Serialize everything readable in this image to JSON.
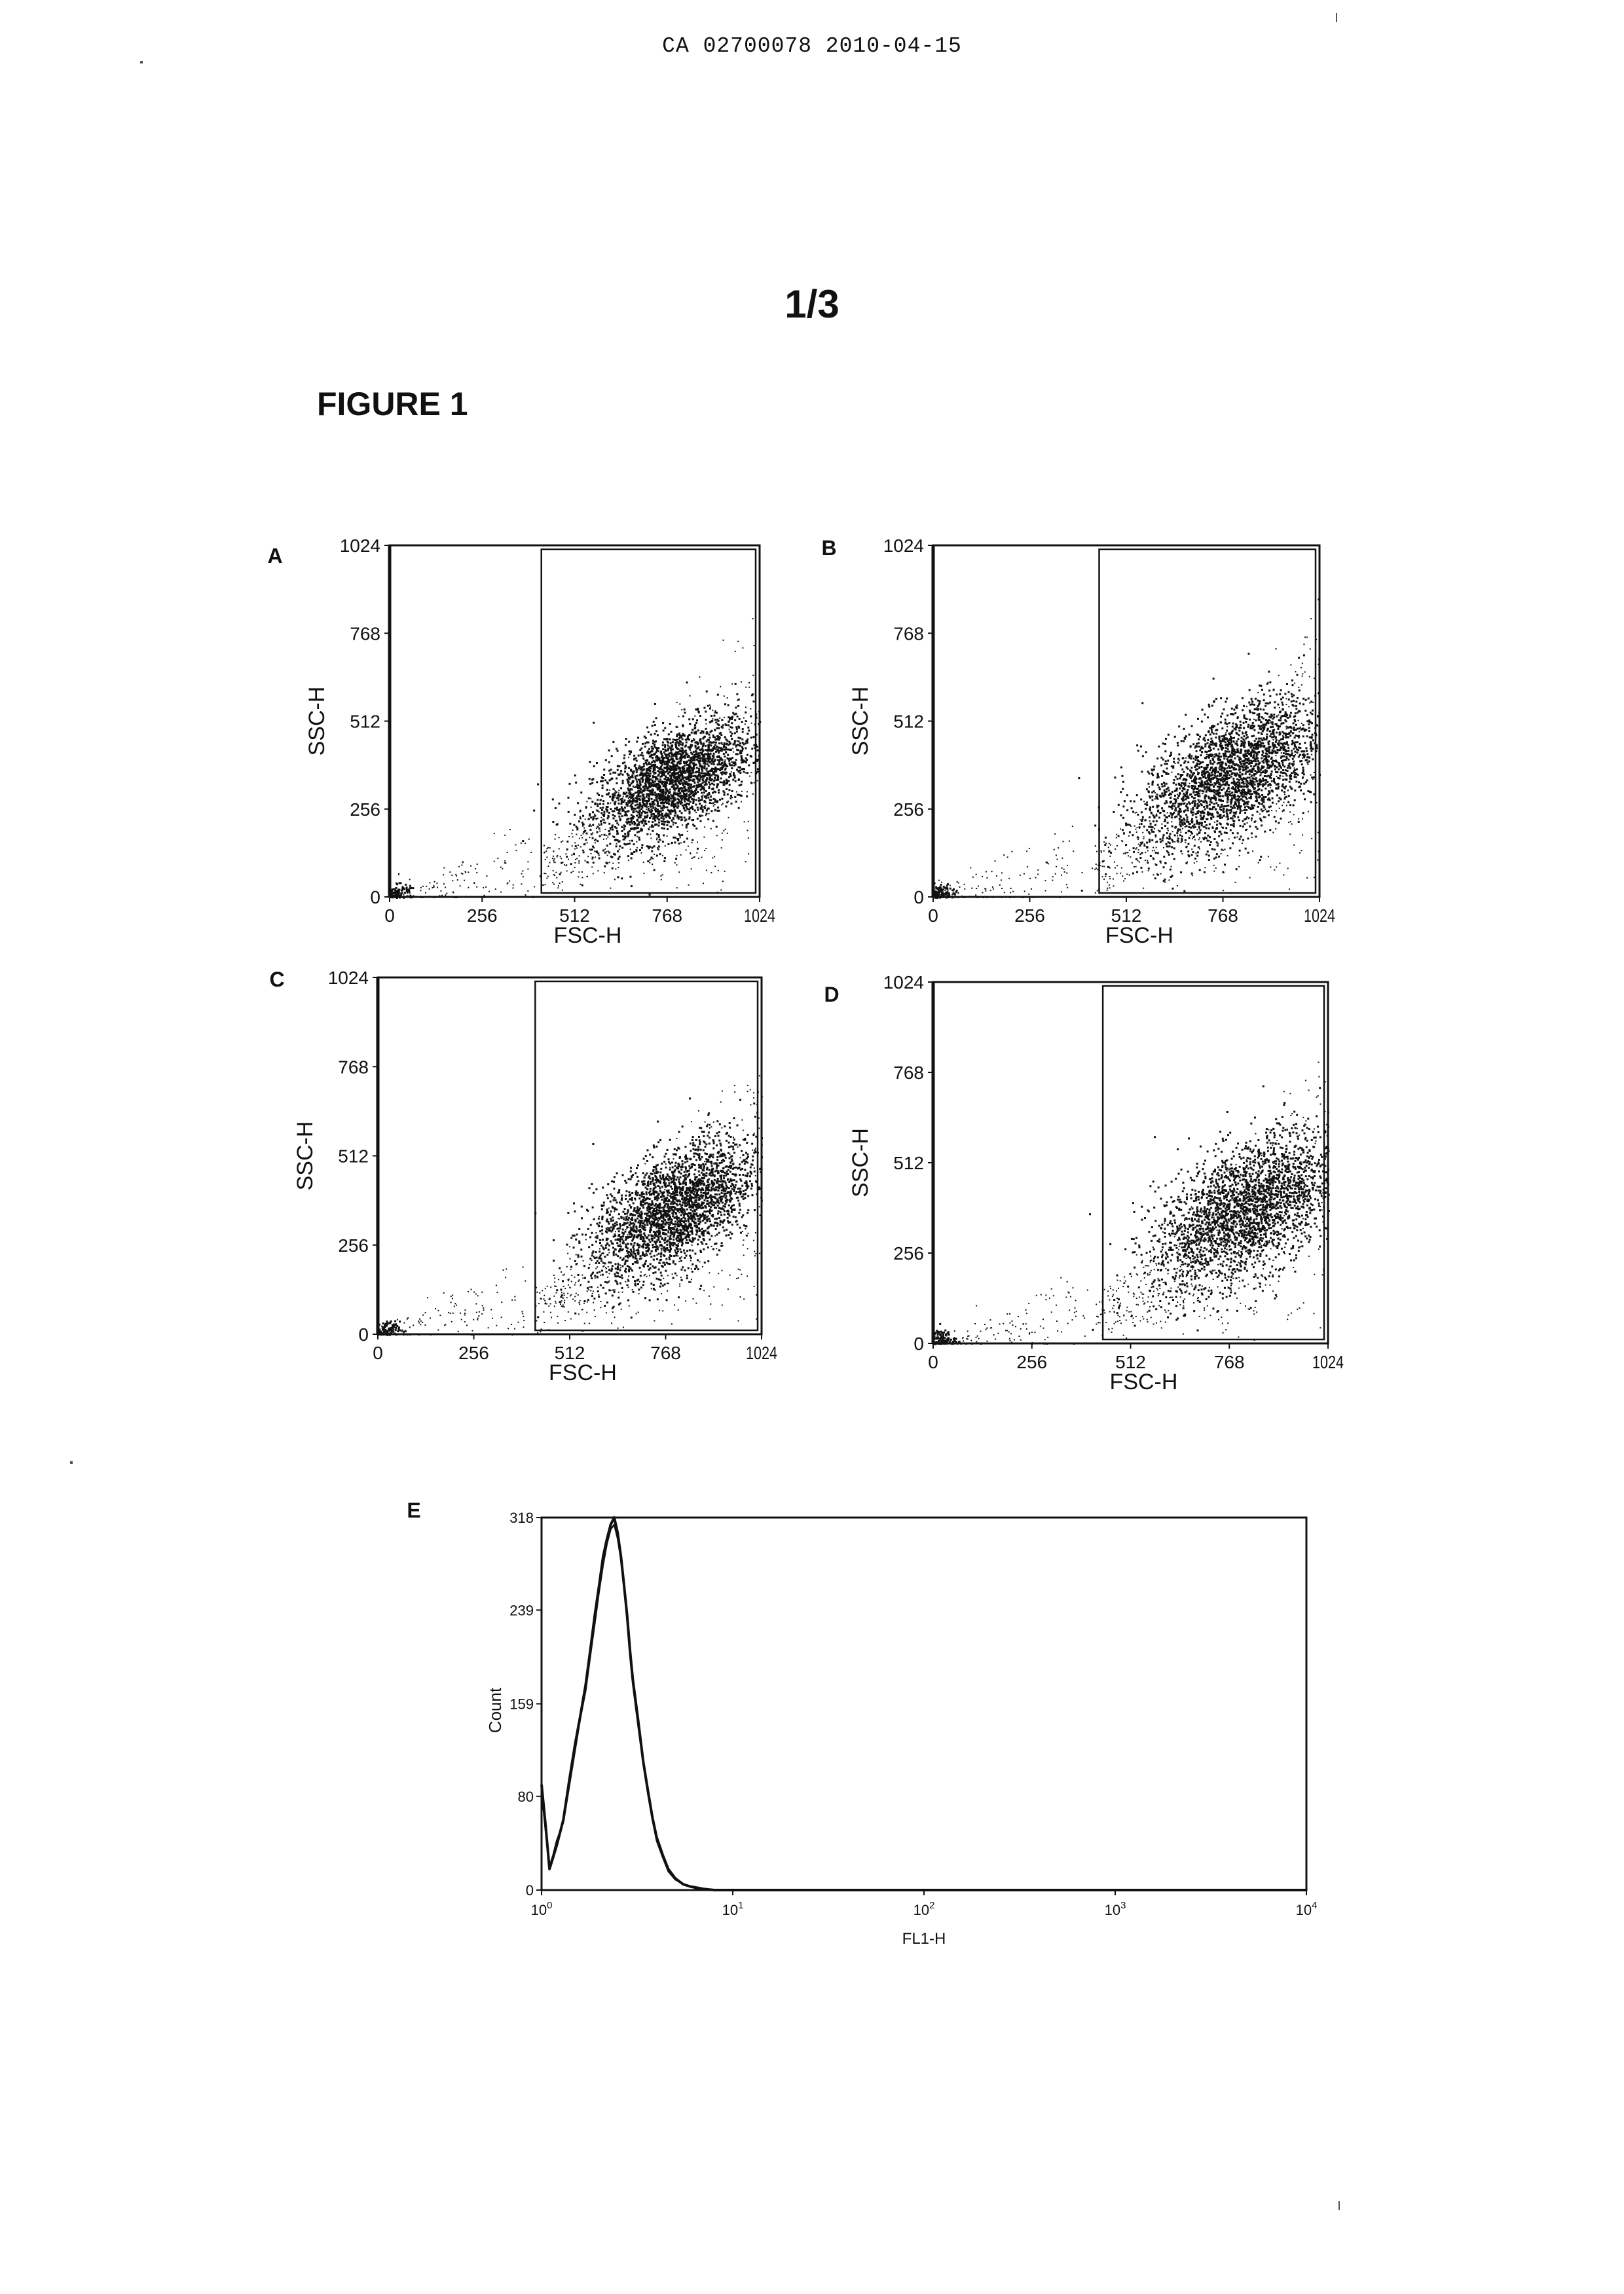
{
  "header": {
    "doc_id": "CA 02700078 2010-04-15"
  },
  "page_number": "1/3",
  "figure_title": "FIGURE 1",
  "chart_data": [
    {
      "panel": "A",
      "type": "scatter",
      "xlabel": "FSC-H",
      "ylabel": "SSC-H",
      "xlim": [
        0,
        1024
      ],
      "ylim": [
        0,
        1024
      ],
      "xticks": [
        "0",
        "256",
        "512",
        "768",
        "1024"
      ],
      "yticks": [
        "0",
        "256",
        "512",
        "768",
        "1024"
      ],
      "gate": {
        "x": [
          420,
          1024
        ],
        "y": [
          0,
          1024
        ]
      },
      "cluster": {
        "cx": 780,
        "cy": 340,
        "sx": 110,
        "sy": 90,
        "rho": 0.55
      }
    },
    {
      "panel": "B",
      "type": "scatter",
      "xlabel": "FSC-H",
      "ylabel": "SSC-H",
      "xlim": [
        0,
        1024
      ],
      "ylim": [
        0,
        1024
      ],
      "xticks": [
        "0",
        "256",
        "512",
        "768",
        "1024"
      ],
      "yticks": [
        "0",
        "256",
        "512",
        "768",
        "1024"
      ],
      "gate": {
        "x": [
          440,
          1024
        ],
        "y": [
          0,
          1024
        ]
      },
      "cluster": {
        "cx": 790,
        "cy": 360,
        "sx": 120,
        "sy": 110,
        "rho": 0.55
      }
    },
    {
      "panel": "C",
      "type": "scatter",
      "xlabel": "FSC-H",
      "ylabel": "SSC-H",
      "xlim": [
        0,
        1024
      ],
      "ylim": [
        0,
        1024
      ],
      "xticks": [
        "0",
        "256",
        "512",
        "768",
        "1024"
      ],
      "yticks": [
        "0",
        "256",
        "512",
        "768",
        "1024"
      ],
      "gate": {
        "x": [
          420,
          1024
        ],
        "y": [
          0,
          1024
        ]
      },
      "cluster": {
        "cx": 790,
        "cy": 360,
        "sx": 110,
        "sy": 100,
        "rho": 0.55
      }
    },
    {
      "panel": "D",
      "type": "scatter",
      "xlabel": "FSC-H",
      "ylabel": "SSC-H",
      "xlim": [
        0,
        1024
      ],
      "ylim": [
        0,
        1024
      ],
      "xticks": [
        "0",
        "256",
        "512",
        "768",
        "1024"
      ],
      "yticks": [
        "0",
        "256",
        "512",
        "768",
        "1024"
      ],
      "gate": {
        "x": [
          440,
          1024
        ],
        "y": [
          0,
          1024
        ]
      },
      "cluster": {
        "cx": 810,
        "cy": 380,
        "sx": 120,
        "sy": 110,
        "rho": 0.55
      }
    },
    {
      "panel": "E",
      "type": "line",
      "xlabel": "FL1-H",
      "ylabel": "Count",
      "xscale": "log",
      "xlim": [
        1,
        10000
      ],
      "ylim": [
        0,
        318
      ],
      "xticks": [
        {
          "base": "10",
          "exp": "0"
        },
        {
          "base": "10",
          "exp": "1"
        },
        {
          "base": "10",
          "exp": "2"
        },
        {
          "base": "10",
          "exp": "3"
        },
        {
          "base": "10",
          "exp": "4"
        }
      ],
      "yticks": [
        "0",
        "80",
        "159",
        "239",
        "318"
      ],
      "series": [
        {
          "x": [
            1.0,
            1.05,
            1.1,
            1.15,
            1.2,
            1.3,
            1.4,
            1.5,
            1.6,
            1.7,
            1.8,
            1.9,
            2.0,
            2.1,
            2.2,
            2.3,
            2.4,
            2.5,
            2.6,
            2.7,
            2.8,
            2.9,
            3.0,
            3.2,
            3.4,
            3.6,
            3.8,
            4.0,
            4.3,
            4.6,
            5.0,
            5.5,
            6.0,
            6.5,
            7.0,
            8.0,
            9.0,
            10.0,
            12.0,
            100.0,
            1000.0,
            10000.0
          ],
          "y": [
            90,
            55,
            18,
            28,
            38,
            60,
            95,
            125,
            150,
            175,
            205,
            235,
            260,
            285,
            300,
            312,
            318,
            305,
            285,
            260,
            235,
            205,
            180,
            145,
            110,
            85,
            62,
            45,
            30,
            18,
            10,
            5,
            3,
            2,
            1,
            0,
            0,
            0,
            0,
            0,
            0,
            0
          ]
        },
        {
          "x": [
            1.0,
            1.05,
            1.1,
            1.15,
            1.2,
            1.3,
            1.4,
            1.5,
            1.6,
            1.7,
            1.8,
            1.9,
            2.0,
            2.1,
            2.2,
            2.3,
            2.4,
            2.5,
            2.6,
            2.7,
            2.8,
            2.9,
            3.0,
            3.2,
            3.4,
            3.6,
            3.8,
            4.0,
            4.3,
            4.6,
            5.0,
            5.5,
            6.0,
            6.5,
            7.0,
            8.0,
            9.0,
            10.0,
            12.0,
            100.0,
            1000.0,
            10000.0
          ],
          "y": [
            85,
            50,
            20,
            30,
            42,
            58,
            90,
            120,
            148,
            170,
            200,
            228,
            255,
            278,
            296,
            308,
            312,
            300,
            282,
            258,
            230,
            200,
            176,
            140,
            108,
            82,
            60,
            42,
            28,
            16,
            9,
            5,
            3,
            1,
            0,
            0,
            0,
            0,
            0,
            0,
            0,
            0
          ]
        }
      ]
    }
  ]
}
